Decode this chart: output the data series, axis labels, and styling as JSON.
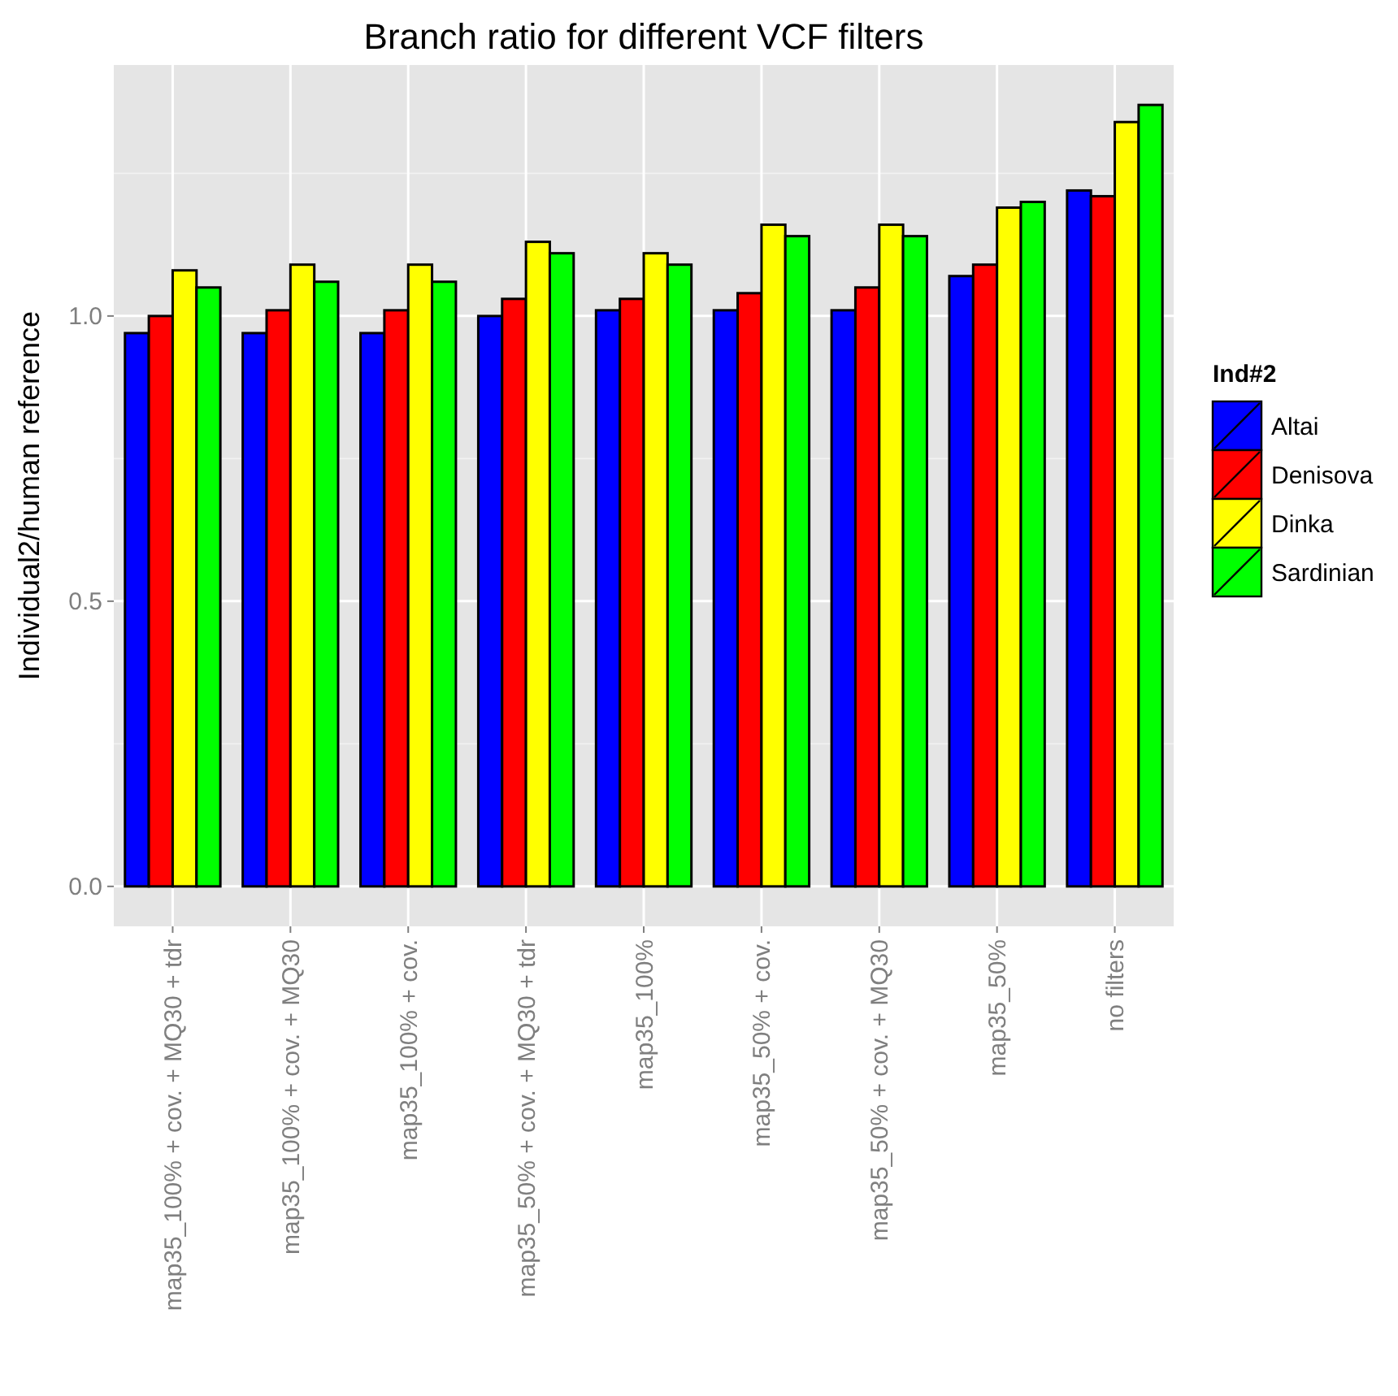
{
  "chart_data": {
    "type": "bar",
    "title": "Branch ratio for different VCF filters",
    "ylabel": "Individual2/human reference",
    "legend_title": "Ind#2",
    "categories": [
      "map35_100% + cov. + MQ30 + tdr",
      "map35_100% + cov. + MQ30",
      "map35_100% + cov.",
      "map35_50% + cov. + MQ30 + tdr",
      "map35_100%",
      "map35_50% + cov.",
      "map35_50% + cov. + MQ30",
      "map35_50%",
      "no filters"
    ],
    "series": [
      {
        "name": "Altai",
        "color": "#0000ff",
        "values": [
          0.97,
          0.97,
          0.97,
          1.0,
          1.01,
          1.01,
          1.01,
          1.07,
          1.22
        ]
      },
      {
        "name": "Denisova",
        "color": "#ff0000",
        "values": [
          1.0,
          1.01,
          1.01,
          1.03,
          1.03,
          1.04,
          1.05,
          1.09,
          1.21
        ]
      },
      {
        "name": "Dinka",
        "color": "#ffff00",
        "values": [
          1.08,
          1.09,
          1.09,
          1.13,
          1.11,
          1.16,
          1.16,
          1.19,
          1.34
        ]
      },
      {
        "name": "Sardinian",
        "color": "#00ff00",
        "values": [
          1.05,
          1.06,
          1.06,
          1.11,
          1.09,
          1.14,
          1.14,
          1.2,
          1.37
        ]
      }
    ],
    "ylim": [
      -0.07,
      1.44
    ],
    "yticks": [
      {
        "value": 0,
        "label": "0.0"
      },
      {
        "value": 0.5,
        "label": "0.5"
      },
      {
        "value": 1,
        "label": "1.0"
      }
    ],
    "grid": true,
    "legend": "right"
  }
}
